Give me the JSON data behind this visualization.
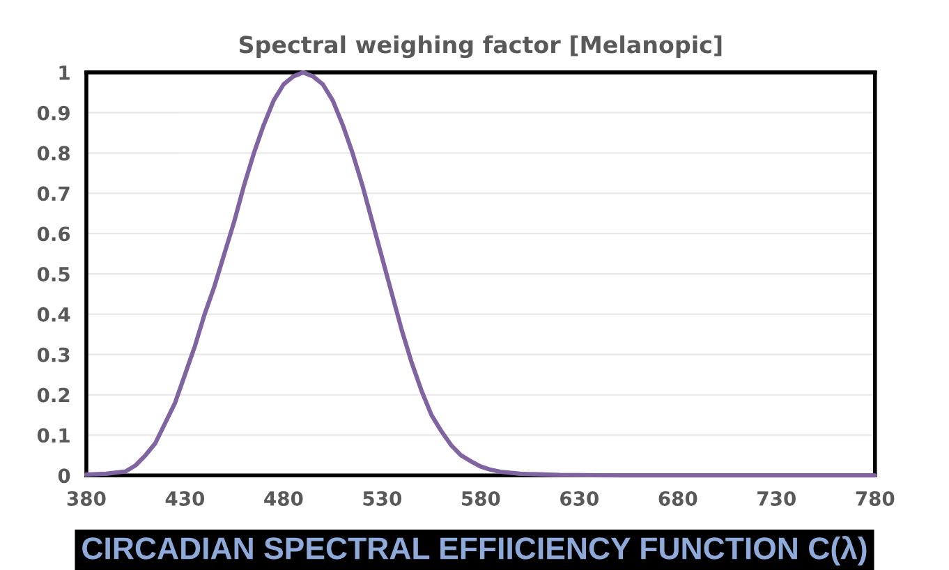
{
  "chart_data": {
    "type": "line",
    "title": "Spectral weighing factor [Melanopic]",
    "x": [
      380,
      390,
      400,
      405,
      410,
      415,
      420,
      425,
      430,
      435,
      440,
      445,
      450,
      455,
      460,
      465,
      470,
      475,
      480,
      485,
      490,
      495,
      500,
      505,
      510,
      515,
      520,
      525,
      530,
      535,
      540,
      545,
      550,
      555,
      560,
      565,
      570,
      575,
      580,
      585,
      590,
      600,
      620,
      650,
      700,
      780
    ],
    "series": [
      {
        "color": "#8064a2",
        "values": [
          0.002,
          0.004,
          0.01,
          0.025,
          0.05,
          0.08,
          0.13,
          0.18,
          0.25,
          0.32,
          0.4,
          0.47,
          0.55,
          0.63,
          0.72,
          0.8,
          0.87,
          0.93,
          0.97,
          0.99,
          1.0,
          0.99,
          0.97,
          0.93,
          0.87,
          0.8,
          0.72,
          0.63,
          0.54,
          0.45,
          0.36,
          0.28,
          0.21,
          0.15,
          0.11,
          0.075,
          0.05,
          0.035,
          0.022,
          0.014,
          0.009,
          0.004,
          0.001,
          0,
          0,
          0
        ]
      }
    ],
    "xlim": [
      380,
      780
    ],
    "xticks": [
      380,
      430,
      480,
      530,
      580,
      630,
      680,
      730,
      780
    ],
    "ylim": [
      0,
      1
    ],
    "yticks": [
      0,
      {
        "value": 0.1,
        "label": "0.1"
      },
      {
        "value": 0.2,
        "label": "0.2"
      },
      {
        "value": 0.3,
        "label": "0.3"
      },
      {
        "value": 0.4,
        "label": "0.4"
      },
      {
        "value": 0.5,
        "label": "0.5"
      },
      {
        "value": 0.6,
        "label": "0.6"
      },
      {
        "value": 0.7,
        "label": "0.7"
      },
      {
        "value": 0.8,
        "label": "0.8"
      },
      {
        "value": 0.9,
        "label": "0.9"
      },
      1
    ],
    "grid": "y",
    "marker": "none",
    "line_style": "solid",
    "annotations": [
      "CIRCADIAN SPECTRAL EFFIICIENCY FUNCTION C(λ)"
    ]
  }
}
